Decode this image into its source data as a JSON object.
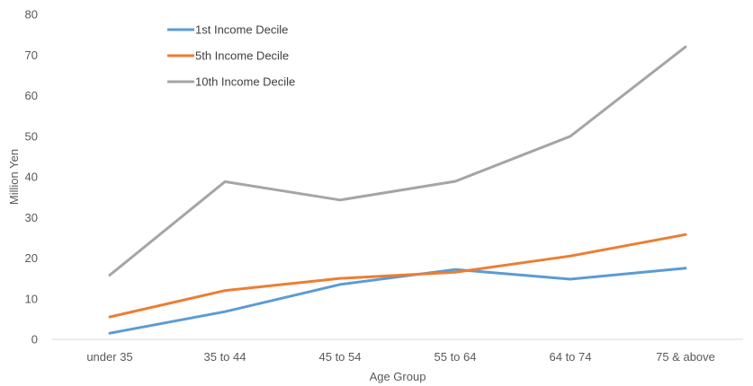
{
  "chart_data": {
    "type": "line",
    "title": "",
    "xlabel": "Age Group",
    "ylabel": "Million Yen",
    "categories": [
      "under 35",
      "35 to 44",
      "45 to 54",
      "55 to 64",
      "64 to 74",
      "75 & above"
    ],
    "ylim": [
      0,
      80
    ],
    "yticks": [
      0,
      10,
      20,
      30,
      40,
      50,
      60,
      70,
      80
    ],
    "grid": false,
    "legend_position": "top-left",
    "series": [
      {
        "name": "1st Income Decile",
        "color": "#5B9BD5",
        "values": [
          1.5,
          6.8,
          13.5,
          17.2,
          14.8,
          17.5
        ]
      },
      {
        "name": "5th Income Decile",
        "color": "#ED7D31",
        "values": [
          5.5,
          12.0,
          15.0,
          16.5,
          20.5,
          25.8
        ]
      },
      {
        "name": "10th Income Decile",
        "color": "#A5A5A5",
        "values": [
          15.8,
          38.8,
          34.3,
          38.9,
          50.0,
          72.0
        ]
      }
    ]
  }
}
